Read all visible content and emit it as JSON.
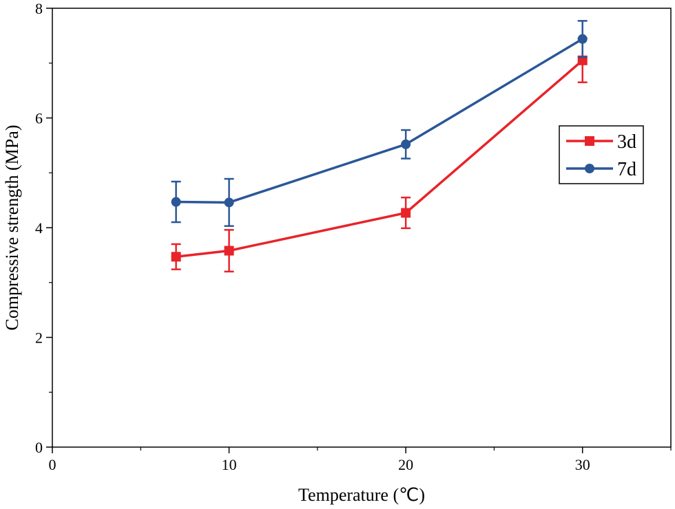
{
  "chart_data": {
    "type": "line",
    "xlabel": "Temperature (℃)",
    "ylabel": "Compressive strength (MPa)",
    "xlim": [
      0,
      35
    ],
    "ylim": [
      0,
      8
    ],
    "x_ticks": [
      0,
      10,
      20,
      30
    ],
    "y_ticks": [
      0,
      2,
      4,
      6,
      8
    ],
    "x_minor_ticks": [
      5,
      15,
      25,
      35
    ],
    "y_minor_ticks": [
      1,
      3,
      5,
      7
    ],
    "grid": false,
    "legend_position": "right",
    "series": [
      {
        "name": "3d",
        "color": "#e8232a",
        "marker": "square",
        "x": [
          7,
          10,
          20,
          30
        ],
        "y": [
          3.47,
          3.58,
          4.27,
          7.05
        ],
        "err": [
          0.23,
          0.38,
          0.28,
          0.4
        ]
      },
      {
        "name": "7d",
        "color": "#2b5797",
        "marker": "circle",
        "x": [
          7,
          10,
          20,
          30
        ],
        "y": [
          4.47,
          4.46,
          5.52,
          7.44
        ],
        "err": [
          0.37,
          0.43,
          0.26,
          0.33
        ]
      }
    ]
  }
}
